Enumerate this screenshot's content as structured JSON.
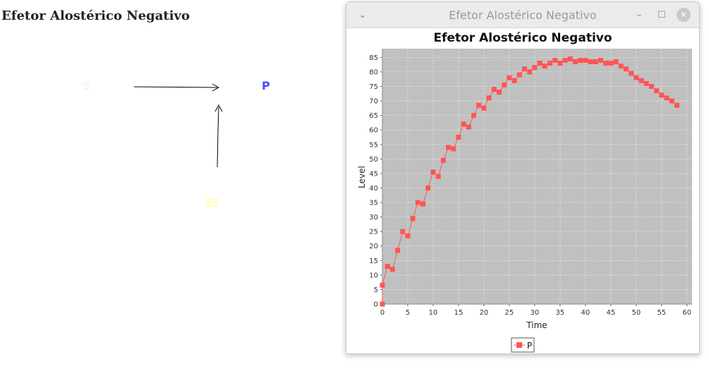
{
  "page": {
    "title": "Efetor Alostérico Negativo"
  },
  "diagram": {
    "substrate_label": "S",
    "product_label": "P",
    "effector_label": "Ef"
  },
  "window": {
    "title": "Efetor Alostérico Negativo",
    "buttons": {
      "menu": "⌄",
      "minimize": "–",
      "maximize": "☐",
      "close": "✕"
    }
  },
  "chart_data": {
    "type": "line",
    "title": "Efetor Alostérico Negativo",
    "xlabel": "Time",
    "ylabel": "Level",
    "xlim": [
      0,
      61
    ],
    "ylim": [
      0,
      88
    ],
    "xticks": [
      0,
      5,
      10,
      15,
      20,
      25,
      30,
      35,
      40,
      45,
      50,
      55,
      60
    ],
    "yticks": [
      0,
      5,
      10,
      15,
      20,
      25,
      30,
      35,
      40,
      45,
      50,
      55,
      60,
      65,
      70,
      75,
      80,
      85
    ],
    "grid": true,
    "legend_position": "bottom",
    "series": [
      {
        "name": "P",
        "color": "#ff5555",
        "marker": "square",
        "x": [
          0,
          0,
          1,
          2,
          3,
          4,
          5,
          6,
          7,
          8,
          9,
          10,
          11,
          12,
          13,
          14,
          15,
          16,
          17,
          18,
          19,
          20,
          21,
          22,
          23,
          24,
          25,
          26,
          27,
          28,
          29,
          30,
          31,
          32,
          33,
          34,
          35,
          36,
          37,
          38,
          39,
          40,
          41,
          42,
          43,
          44,
          45,
          46,
          47,
          48,
          49,
          50,
          51,
          52,
          53,
          54,
          55,
          56,
          57,
          58
        ],
        "y": [
          0,
          6.5,
          13,
          12,
          18.5,
          25,
          23.5,
          29.5,
          35,
          34.5,
          40,
          45.5,
          44,
          49.5,
          54,
          53.5,
          57.5,
          62,
          61,
          65,
          68.5,
          67.5,
          71,
          74,
          73,
          75.5,
          78,
          77,
          79,
          81,
          80,
          81.5,
          83,
          82,
          83,
          84,
          83,
          84,
          84.5,
          83.5,
          84,
          84,
          83.5,
          83.5,
          84,
          83,
          83,
          83.5,
          82,
          81,
          79.5,
          78,
          77,
          76,
          75,
          73.5,
          72,
          71,
          70,
          68.5
        ]
      }
    ]
  }
}
